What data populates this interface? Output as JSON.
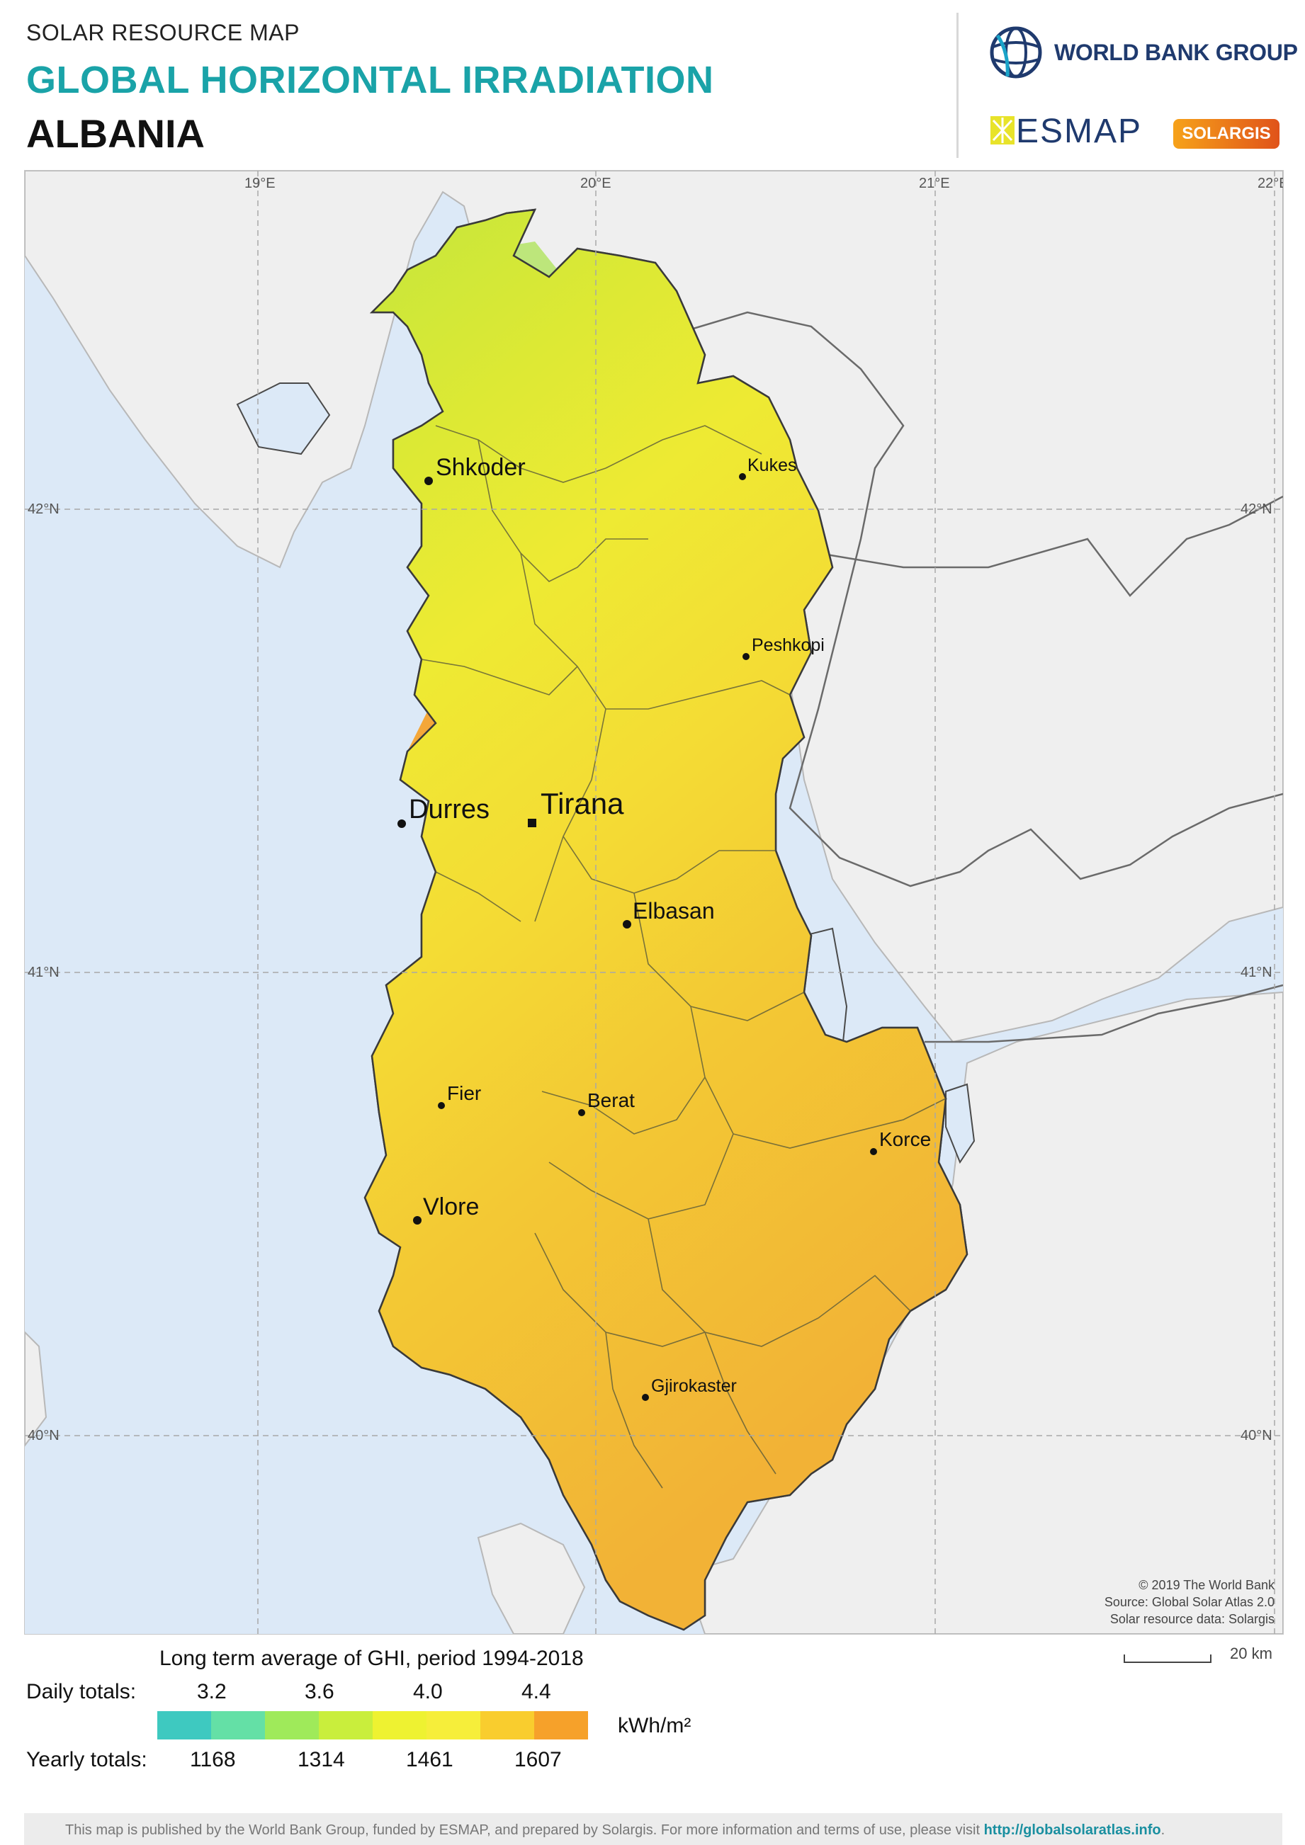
{
  "header": {
    "subtitle": "SOLAR RESOURCE MAP",
    "title": "GLOBAL HORIZONTAL IRRADIATION",
    "country": "ALBANIA"
  },
  "logos": {
    "world_bank": "WORLD BANK GROUP",
    "esmap": "ESMAP",
    "solargis": "SOLARGIS"
  },
  "map": {
    "longitude_labels": [
      "19°E",
      "20°E",
      "21°E",
      "22°E"
    ],
    "latitude_labels": [
      "42°N",
      "41°N",
      "40°N"
    ],
    "cities": [
      {
        "name": "Shkoder",
        "marker": "dot"
      },
      {
        "name": "Kukes",
        "marker": "dot"
      },
      {
        "name": "Peshkopi",
        "marker": "dot"
      },
      {
        "name": "Durres",
        "marker": "dot"
      },
      {
        "name": "Tirana",
        "marker": "square"
      },
      {
        "name": "Elbasan",
        "marker": "dot"
      },
      {
        "name": "Fier",
        "marker": "dot"
      },
      {
        "name": "Berat",
        "marker": "dot"
      },
      {
        "name": "Korce",
        "marker": "dot"
      },
      {
        "name": "Vlore",
        "marker": "dot"
      },
      {
        "name": "Gjirokaster",
        "marker": "dot"
      }
    ],
    "credits": [
      "© 2019 The World Bank",
      "Source: Global Solar Atlas 2.0",
      "Solar resource data: Solargis"
    ],
    "scale_label": "20 km",
    "colors": {
      "sea": "#dce9f7",
      "neighbor_land": "#efefef",
      "borders": "#4a4a4a",
      "grid": "#b0b0b0"
    }
  },
  "legend": {
    "title": "Long term average of GHI, period 1994-2018",
    "daily_label": "Daily totals:",
    "yearly_label": "Yearly totals:",
    "daily_values": [
      "3.2",
      "3.6",
      "4.0",
      "4.4"
    ],
    "yearly_values": [
      "1168",
      "1314",
      "1461",
      "1607"
    ],
    "unit": "kWh/m²",
    "swatches": [
      "#3ec9c0",
      "#64e0a6",
      "#9fea5a",
      "#c9ee3c",
      "#eef231",
      "#f6ee3a",
      "#f9cd2e",
      "#f6a12a"
    ]
  },
  "footer": {
    "text": "This map is published by the World Bank Group, funded by ESMAP, and prepared by Solargis. For more information and terms of use, please visit ",
    "link": "http://globalsolaratlas.info",
    "end": "."
  }
}
